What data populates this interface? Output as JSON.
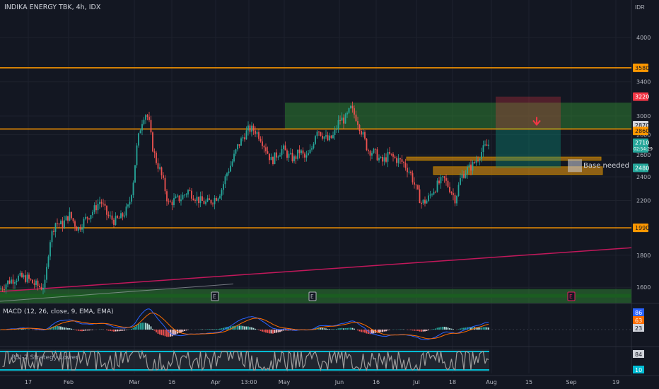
{
  "header": {
    "title": "INDIKA ENERGY TBK, 4h, IDX",
    "currency": "IDR"
  },
  "colors": {
    "background": "#131722",
    "grid": "#1e222d",
    "up": "#26a69a",
    "down": "#ef5350",
    "orange_line": "#ff9800",
    "trend_line": "#c2185b",
    "green_zone": "#2e7d32",
    "macd_line": "#2962ff",
    "signal_line": "#ff6d00",
    "rsi_line": "#9e9e9e",
    "rsi_band": "#00bcd4"
  },
  "chart_data": {
    "type": "candlestick",
    "symbol": "INDIKA ENERGY TBK",
    "timeframe": "4h",
    "exchange": "IDX",
    "y_scale": "log",
    "ylim": [
      1520,
      4450
    ],
    "y_ticks": [
      4000,
      3400,
      3000,
      2800,
      2600,
      2400,
      2200,
      1800,
      1600
    ],
    "x_tick_labels": [
      "17",
      "Feb",
      "Mar",
      "16",
      "Apr",
      "13:00",
      "May",
      "Jun",
      "16",
      "Jul",
      "18",
      "Aug",
      "15",
      "Sep",
      "19"
    ],
    "x_ticks": [
      {
        "label": "17",
        "x": 40
      },
      {
        "label": "Feb",
        "x": 97
      },
      {
        "label": "Mar",
        "x": 190
      },
      {
        "label": "16",
        "x": 243
      },
      {
        "label": "Apr",
        "x": 305
      },
      {
        "label": "13:00",
        "x": 352
      },
      {
        "label": "May",
        "x": 402
      },
      {
        "label": "Jun",
        "x": 480
      },
      {
        "label": "16",
        "x": 532
      },
      {
        "label": "Jul",
        "x": 589
      },
      {
        "label": "18",
        "x": 640
      },
      {
        "label": "Aug",
        "x": 695
      },
      {
        "label": "15",
        "x": 748
      },
      {
        "label": "Sep",
        "x": 808
      },
      {
        "label": "19",
        "x": 871
      }
    ],
    "price_path": [
      [
        0,
        1590
      ],
      [
        12,
        1635
      ],
      [
        25,
        1660
      ],
      [
        38,
        1655
      ],
      [
        48,
        1620
      ],
      [
        58,
        1600
      ],
      [
        64,
        1620
      ],
      [
        70,
        1890
      ],
      [
        78,
        2030
      ],
      [
        88,
        2010
      ],
      [
        98,
        2090
      ],
      [
        110,
        1980
      ],
      [
        120,
        2050
      ],
      [
        132,
        2120
      ],
      [
        142,
        2200
      ],
      [
        152,
        2080
      ],
      [
        162,
        2040
      ],
      [
        172,
        2070
      ],
      [
        182,
        2150
      ],
      [
        188,
        2340
      ],
      [
        194,
        2700
      ],
      [
        200,
        2930
      ],
      [
        205,
        3040
      ],
      [
        210,
        2970
      ],
      [
        215,
        2700
      ],
      [
        220,
        2560
      ],
      [
        226,
        2460
      ],
      [
        232,
        2330
      ],
      [
        238,
        2170
      ],
      [
        246,
        2200
      ],
      [
        256,
        2220
      ],
      [
        266,
        2280
      ],
      [
        274,
        2240
      ],
      [
        282,
        2200
      ],
      [
        292,
        2180
      ],
      [
        300,
        2200
      ],
      [
        308,
        2240
      ],
      [
        314,
        2300
      ],
      [
        320,
        2420
      ],
      [
        328,
        2530
      ],
      [
        336,
        2680
      ],
      [
        344,
        2780
      ],
      [
        352,
        2860
      ],
      [
        360,
        2850
      ],
      [
        368,
        2780
      ],
      [
        376,
        2660
      ],
      [
        384,
        2540
      ],
      [
        392,
        2610
      ],
      [
        400,
        2660
      ],
      [
        408,
        2590
      ],
      [
        416,
        2560
      ],
      [
        424,
        2640
      ],
      [
        432,
        2560
      ],
      [
        440,
        2640
      ],
      [
        448,
        2870
      ],
      [
        456,
        2800
      ],
      [
        464,
        2740
      ],
      [
        472,
        2790
      ],
      [
        480,
        2960
      ],
      [
        488,
        2960
      ],
      [
        496,
        3080
      ],
      [
        504,
        2980
      ],
      [
        512,
        2820
      ],
      [
        520,
        2650
      ],
      [
        530,
        2620
      ],
      [
        540,
        2530
      ],
      [
        550,
        2600
      ],
      [
        560,
        2560
      ],
      [
        570,
        2530
      ],
      [
        580,
        2440
      ],
      [
        588,
        2300
      ],
      [
        596,
        2180
      ],
      [
        604,
        2200
      ],
      [
        612,
        2280
      ],
      [
        620,
        2340
      ],
      [
        628,
        2380
      ],
      [
        636,
        2300
      ],
      [
        644,
        2210
      ],
      [
        652,
        2400
      ],
      [
        660,
        2460
      ],
      [
        668,
        2500
      ],
      [
        676,
        2580
      ],
      [
        684,
        2660
      ],
      [
        692,
        2710
      ]
    ],
    "horizontal_levels": [
      {
        "price": 3580,
        "label": "3580"
      },
      {
        "price": 2860,
        "label": "2860"
      },
      {
        "price": 1990,
        "label": "1990"
      }
    ],
    "zones": [
      {
        "name": "green-supply-zone",
        "x0": 403,
        "x1": 893,
        "top": 3150,
        "bottom": 2860,
        "color": "#2e7d32"
      },
      {
        "name": "base-zone-upper",
        "x0": 575,
        "x1": 850,
        "top": 2580,
        "bottom": 2550,
        "color": "#f59e0b"
      },
      {
        "name": "base-zone-lower",
        "x0": 613,
        "x1": 852,
        "top": 2490,
        "bottom": 2420,
        "color": "#f59e0b"
      },
      {
        "name": "demand-zone-green",
        "x0": 0,
        "x1": 893,
        "top": 1590,
        "bottom": 1510,
        "color": "#2e7d32"
      }
    ],
    "position": {
      "x0": 701,
      "x1": 793,
      "stop_price": 3220,
      "entry_price": 2870,
      "target_price": 2480,
      "arrow_price": 2920
    },
    "trend_line": {
      "from": [
        0,
        1575
      ],
      "to": [
        893,
        1850
      ]
    },
    "price_labels": [
      {
        "value": "3580",
        "price": 3580,
        "bg": "#ff9800",
        "fg": "#131722"
      },
      {
        "value": "3220",
        "price": 3220,
        "bg": "#f23645",
        "fg": "#ffffff"
      },
      {
        "value": "2870",
        "price": 2900,
        "bg": "#d1d4dc",
        "fg": "#131722"
      },
      {
        "value": "2860",
        "price": 2840,
        "bg": "#ff9800",
        "fg": "#131722"
      },
      {
        "value": "2710",
        "price": 2720,
        "bg": "#26a69a",
        "fg": "#ffffff",
        "sub": "02:54:29"
      },
      {
        "value": "2480",
        "price": 2480,
        "bg": "#26a69a",
        "fg": "#ffffff"
      },
      {
        "value": "1990",
        "price": 1990,
        "bg": "#ff9800",
        "fg": "#131722"
      }
    ],
    "annotations": [
      {
        "text": "Base needed",
        "x": 825,
        "price": 2500
      }
    ],
    "event_markers": [
      {
        "text": "E",
        "x": 304,
        "color": "#b2b5be"
      },
      {
        "text": "E",
        "x": 442,
        "color": "#b2b5be"
      },
      {
        "text": "E",
        "x": 808,
        "color": "#e91e63"
      }
    ],
    "macd": {
      "label": "MACD (12, 26, close, 9, EMA, EMA)",
      "values": [
        {
          "value": "86",
          "bg": "#2962ff"
        },
        {
          "value": "63",
          "bg": "#ff6d00"
        },
        {
          "value": "23",
          "bg": "#d1d4dc"
        }
      ]
    },
    "rsi": {
      "label": "RSI-2 Strategy Lower",
      "values": [
        {
          "value": "84",
          "bg": "#d1d4dc"
        },
        {
          "value": "10",
          "bg": "#00bcd4"
        }
      ]
    }
  }
}
